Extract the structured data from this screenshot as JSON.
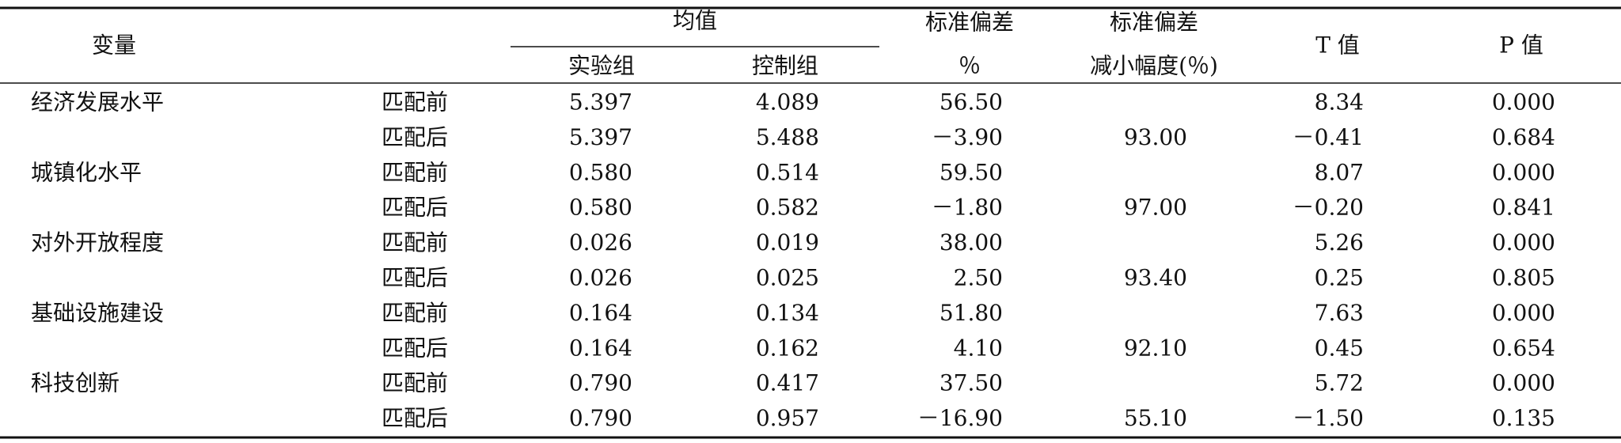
{
  "header": {
    "variable": "变量",
    "mean": "均值",
    "treated": "实验组",
    "control": "控制组",
    "std_bias_1": "标准偏差",
    "std_bias_2": "％",
    "reduction_1": "标准偏差",
    "reduction_2": "减小幅度(％)",
    "t": "T 值",
    "p": "P 值"
  },
  "table": {
    "rows": [
      [
        "经济发展水平",
        "匹配前",
        "5.397",
        "4.089",
        "56.50",
        null,
        "8.34",
        "0.000"
      ],
      [
        null,
        "匹配后",
        "5.397",
        "5.488",
        "－3.90",
        "93.00",
        "－0.41",
        "0.684"
      ],
      [
        "城镇化水平",
        "匹配前",
        "0.580",
        "0.514",
        "59.50",
        null,
        "8.07",
        "0.000"
      ],
      [
        null,
        "匹配后",
        "0.580",
        "0.582",
        "－1.80",
        "97.00",
        "－0.20",
        "0.841"
      ],
      [
        "对外开放程度",
        "匹配前",
        "0.026",
        "0.019",
        "38.00",
        null,
        "5.26",
        "0.000"
      ],
      [
        null,
        "匹配后",
        "0.026",
        "0.025",
        "2.50",
        "93.40",
        "0.25",
        "0.805"
      ],
      [
        "基础设施建设",
        "匹配前",
        "0.164",
        "0.134",
        "51.80",
        null,
        "7.63",
        "0.000"
      ],
      [
        null,
        "匹配后",
        "0.164",
        "0.162",
        "4.10",
        "92.10",
        "0.45",
        "0.654"
      ],
      [
        "科技创新",
        "匹配前",
        "0.790",
        "0.417",
        "37.50",
        null,
        "5.72",
        "0.000"
      ],
      [
        null,
        "匹配后",
        "0.790",
        "0.957",
        "－16.90",
        "55.10",
        "－1.50",
        "0.135"
      ]
    ]
  }
}
